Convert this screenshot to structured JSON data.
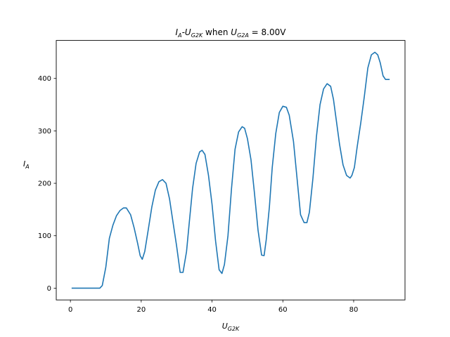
{
  "chart_data": {
    "type": "line",
    "title": {
      "prefix": "I",
      "prefix_sub": "A",
      "dash": "-U",
      "dash_sub": "G2K",
      "middle": " when ",
      "var": "U",
      "var_sub": "G2A",
      "rest": " = 8.00V"
    },
    "xlabel": {
      "main": "U",
      "sub": "G2K"
    },
    "ylabel": {
      "main": "I",
      "sub": "A"
    },
    "xlim": [
      -4.0,
      94.5
    ],
    "ylim": [
      -22.5,
      472.5
    ],
    "xticks": [
      0,
      20,
      40,
      60,
      80
    ],
    "yticks": [
      0,
      100,
      200,
      300,
      400
    ],
    "grid": false,
    "series": [
      {
        "color": "#1f77b4",
        "x": [
          0.5,
          2,
          4,
          6,
          7.5,
          8.3,
          9,
          10,
          11,
          12,
          13,
          14,
          15,
          15.8,
          17,
          18,
          19,
          19.7,
          20.3,
          21,
          22,
          23,
          24,
          25,
          26,
          27,
          28,
          29,
          30,
          31,
          31.8,
          32.8,
          33.5,
          34.5,
          35.5,
          36.5,
          37.2,
          38,
          39,
          40,
          41,
          42,
          42.8,
          43.5,
          44.5,
          45.5,
          46.5,
          47.5,
          48.5,
          49.2,
          50,
          51,
          52,
          53,
          54,
          54.7,
          55.3,
          56.2,
          57,
          58,
          59,
          60,
          61,
          61.8,
          63,
          64,
          65,
          66,
          66.8,
          67.5,
          68.5,
          69.5,
          70.5,
          71.5,
          72.5,
          73.5,
          74.3,
          75,
          76,
          77,
          78,
          79,
          79.5,
          80.2,
          81,
          82,
          83,
          84,
          85,
          86,
          86.8,
          87.5,
          88.3,
          89,
          90
        ],
        "y": [
          0,
          0,
          0,
          0,
          0,
          0,
          5,
          40,
          95,
          120,
          138,
          148,
          153,
          153,
          140,
          115,
          85,
          62,
          55,
          70,
          112,
          155,
          187,
          203,
          207,
          200,
          170,
          125,
          80,
          30,
          30,
          70,
          120,
          190,
          238,
          260,
          263,
          255,
          215,
          160,
          90,
          35,
          28,
          45,
          100,
          190,
          265,
          298,
          308,
          305,
          285,
          245,
          180,
          110,
          63,
          62,
          92,
          155,
          230,
          295,
          335,
          347,
          345,
          330,
          280,
          210,
          140,
          125,
          125,
          145,
          210,
          290,
          350,
          380,
          390,
          385,
          360,
          325,
          275,
          235,
          215,
          210,
          215,
          230,
          270,
          315,
          365,
          420,
          445,
          450,
          445,
          430,
          405,
          398,
          398
        ]
      }
    ]
  }
}
